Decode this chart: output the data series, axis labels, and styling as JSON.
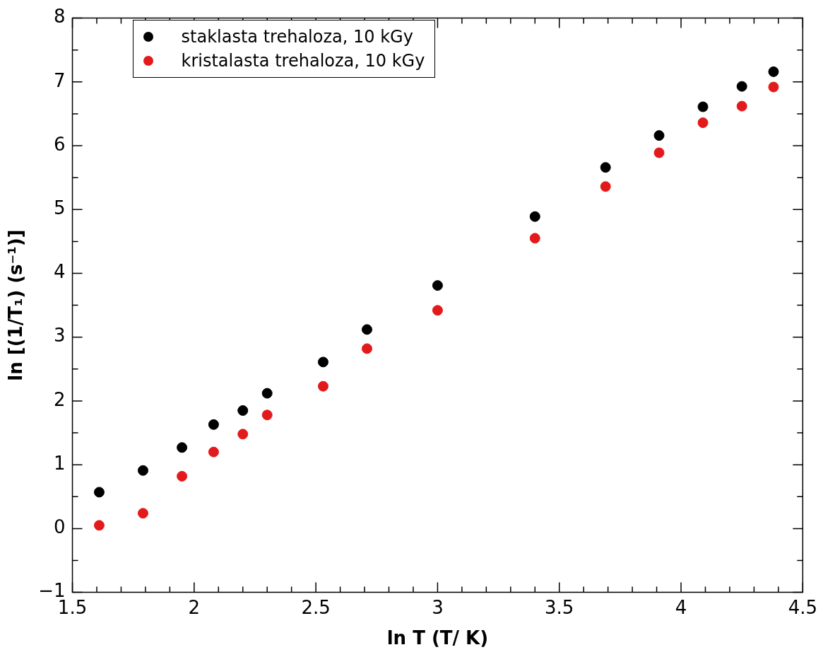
{
  "chart_data": {
    "type": "scatter",
    "xlabel": "ln T (T/ K)",
    "ylabel": "ln [(1/T₁) (s⁻¹)]",
    "legend": "top left",
    "marker": "circle",
    "grid": false,
    "x": [
      1.61,
      1.79,
      1.95,
      2.08,
      2.2,
      2.3,
      2.53,
      2.71,
      3.0,
      3.4,
      3.69,
      3.91,
      4.09,
      4.25,
      4.38
    ],
    "series": [
      {
        "name": "staklasta trehaloza, 10 kGy",
        "color": "#000000",
        "values": [
          0.57,
          0.91,
          1.27,
          1.63,
          1.85,
          2.12,
          2.61,
          3.12,
          3.81,
          4.89,
          5.66,
          6.16,
          6.61,
          6.93,
          7.16
        ]
      },
      {
        "name": "kristalasta trehaloza, 10 kGy",
        "color": "#e31a1c",
        "values": [
          0.05,
          0.24,
          0.82,
          1.2,
          1.48,
          1.78,
          2.23,
          2.82,
          3.42,
          4.55,
          5.36,
          5.89,
          6.36,
          6.62,
          6.92
        ]
      }
    ],
    "xlim": [
      1.5,
      4.5
    ],
    "xticks": [
      1.5,
      {
        "value": 1.6,
        "label": null
      },
      {
        "value": 1.7,
        "label": null
      },
      {
        "value": 1.8,
        "label": null
      },
      {
        "value": 1.9,
        "label": null
      },
      2,
      {
        "value": 2.1,
        "label": null
      },
      {
        "value": 2.2,
        "label": null
      },
      {
        "value": 2.3,
        "label": null
      },
      {
        "value": 2.4,
        "label": null
      },
      2.5,
      {
        "value": 2.6,
        "label": null
      },
      {
        "value": 2.7,
        "label": null
      },
      {
        "value": 2.8,
        "label": null
      },
      {
        "value": 2.9,
        "label": null
      },
      3,
      {
        "value": 3.1,
        "label": null
      },
      {
        "value": 3.2,
        "label": null
      },
      {
        "value": 3.3,
        "label": null
      },
      {
        "value": 3.4,
        "label": null
      },
      3.5,
      {
        "value": 3.6,
        "label": null
      },
      {
        "value": 3.7,
        "label": null
      },
      {
        "value": 3.8,
        "label": null
      },
      {
        "value": 3.9,
        "label": null
      },
      4,
      {
        "value": 4.1,
        "label": null
      },
      {
        "value": 4.2,
        "label": null
      },
      {
        "value": 4.3,
        "label": null
      },
      {
        "value": 4.4,
        "label": null
      },
      4.5
    ],
    "ylim": [
      -1,
      8
    ],
    "yticks": [
      {
        "value": -1,
        "label": "−1"
      },
      {
        "value": -0.5,
        "label": null
      },
      0,
      {
        "value": 0.5,
        "label": null
      },
      1,
      {
        "value": 1.5,
        "label": null
      },
      2,
      {
        "value": 2.5,
        "label": null
      },
      3,
      {
        "value": 3.5,
        "label": null
      },
      4,
      {
        "value": 4.5,
        "label": null
      },
      5,
      {
        "value": 5.5,
        "label": null
      },
      6,
      {
        "value": 6.5,
        "label": null
      },
      7,
      {
        "value": 7.5,
        "label": null
      },
      8
    ]
  }
}
